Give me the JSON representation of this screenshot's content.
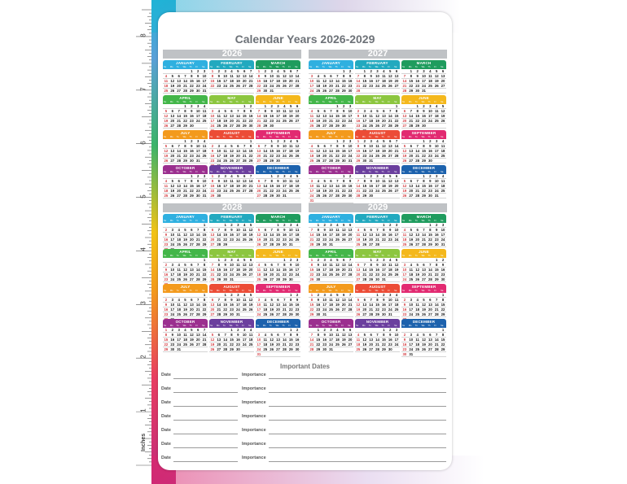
{
  "title": "Calendar Years 2026-2029",
  "ruler": {
    "unit": "Inches",
    "numbers": [
      "8",
      "7",
      "6",
      "5",
      "4",
      "3",
      "2",
      "1"
    ]
  },
  "colors": {
    "january": "#2fb0e0",
    "february": "#22a9bf",
    "march": "#1f9c5e",
    "april": "#43b649",
    "may": "#8cc63f",
    "june": "#f4b81c",
    "july": "#f39a1c",
    "august": "#ec4c36",
    "september": "#e22a71",
    "october": "#9b2f8f",
    "november": "#6b3f9e",
    "december": "#1d62ad",
    "year_header": "#bfc2c5",
    "weekend": "#d3393e"
  },
  "weekday_labels": [
    "Su",
    "Mo",
    "Tu",
    "We",
    "Th",
    "Fr",
    "Sa"
  ],
  "years": [
    {
      "label": "2026",
      "first": 4,
      "leap": false
    },
    {
      "label": "2027",
      "first": 5,
      "leap": false
    },
    {
      "label": "2028",
      "first": 6,
      "leap": true
    },
    {
      "label": "2029",
      "first": 1,
      "leap": false
    }
  ],
  "months": [
    "JANUARY",
    "FEBRUARY",
    "MARCH",
    "APRIL",
    "MAY",
    "JUNE",
    "JULY",
    "AUGUST",
    "SEPTEMBER",
    "OCTOBER",
    "NOVEMBER",
    "DECEMBER"
  ],
  "important": {
    "title": "Important Dates",
    "date_label": "Date",
    "importance_label": "Importance",
    "rows": 7
  }
}
